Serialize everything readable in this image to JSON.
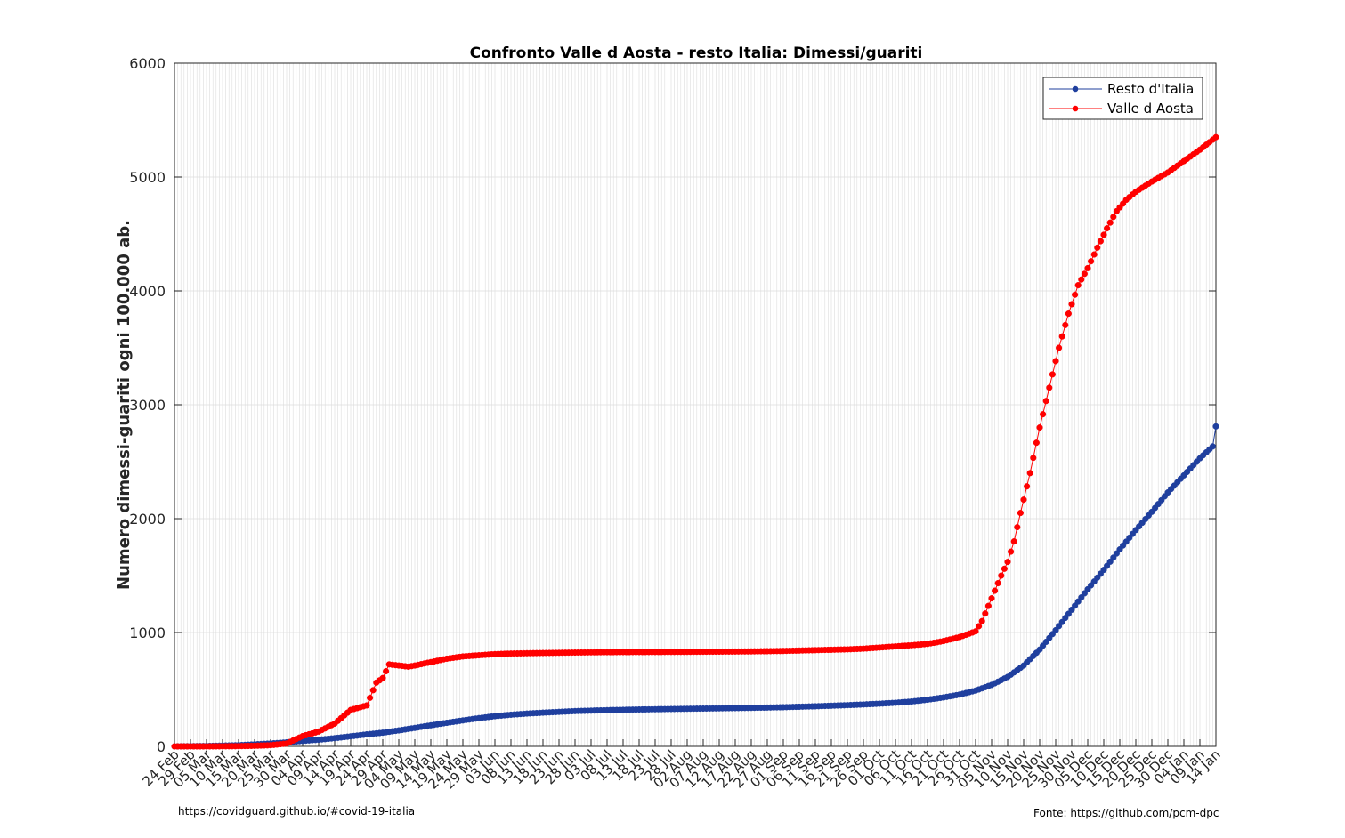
{
  "footer": {
    "left": "https://covidguard.github.io/#covid-19-italia",
    "right": "Fonte: https://github.com/pcm-dpc"
  },
  "chart_data": {
    "type": "line",
    "title": "Confronto Valle d Aosta - resto Italia: Dimessi/guariti",
    "ylabel": "Numero dimessi-guariti ogni 100.000 ab.",
    "xlabel": "",
    "ylim": [
      0,
      6000
    ],
    "yticks": [
      0,
      1000,
      2000,
      3000,
      4000,
      5000,
      6000
    ],
    "x_start": "2020-02-24",
    "x_end": "2021-01-14",
    "x_tick_labels": [
      "24 Feb",
      "29 Feb",
      "05 Mar",
      "10 Mar",
      "15 Mar",
      "20 Mar",
      "25 Mar",
      "30 Mar",
      "04 Apr",
      "09 Apr",
      "14 Apr",
      "19 Apr",
      "24 Apr",
      "29 Apr",
      "04 May",
      "09 May",
      "14 May",
      "19 May",
      "24 May",
      "29 May",
      "03 Jun",
      "08 Jun",
      "13 Jun",
      "18 Jun",
      "23 Jun",
      "28 Jun",
      "03 Jul",
      "08 Jul",
      "13 Jul",
      "18 Jul",
      "23 Jul",
      "28 Jul",
      "02 Aug",
      "07 Aug",
      "12 Aug",
      "17 Aug",
      "22 Aug",
      "27 Aug",
      "01 Sep",
      "06 Sep",
      "11 Sep",
      "16 Sep",
      "21 Sep",
      "26 Sep",
      "01 Oct",
      "06 Oct",
      "11 Oct",
      "16 Oct",
      "21 Oct",
      "26 Oct",
      "31 Oct",
      "05 Nov",
      "10 Nov",
      "15 Nov",
      "20 Nov",
      "25 Nov",
      "30 Nov",
      "05 Dec",
      "10 Dec",
      "15 Dec",
      "20 Dec",
      "25 Dec",
      "30 Dec",
      "04 Jan",
      "09 Jan",
      "14 Jan"
    ],
    "grid": true,
    "legend_position": "top-right",
    "series": [
      {
        "name": "Resto d'Italia",
        "color": "#1f3f9e",
        "points": [
          [
            "24 Feb",
            0
          ],
          [
            "05 Mar",
            3
          ],
          [
            "15 Mar",
            10
          ],
          [
            "25 Mar",
            25
          ],
          [
            "30 Mar",
            35
          ],
          [
            "04 Apr",
            48
          ],
          [
            "09 Apr",
            58
          ],
          [
            "14 Apr",
            72
          ],
          [
            "19 Apr",
            88
          ],
          [
            "24 Apr",
            105
          ],
          [
            "29 Apr",
            120
          ],
          [
            "04 May",
            140
          ],
          [
            "09 May",
            162
          ],
          [
            "14 May",
            185
          ],
          [
            "19 May",
            207
          ],
          [
            "24 May",
            228
          ],
          [
            "29 May",
            248
          ],
          [
            "03 Jun",
            265
          ],
          [
            "08 Jun",
            278
          ],
          [
            "13 Jun",
            288
          ],
          [
            "18 Jun",
            296
          ],
          [
            "23 Jun",
            303
          ],
          [
            "28 Jun",
            310
          ],
          [
            "03 Jul",
            314
          ],
          [
            "08 Jul",
            318
          ],
          [
            "13 Jul",
            321
          ],
          [
            "18 Jul",
            324
          ],
          [
            "23 Jul",
            326
          ],
          [
            "28 Jul",
            328
          ],
          [
            "02 Aug",
            330
          ],
          [
            "07 Aug",
            332
          ],
          [
            "12 Aug",
            334
          ],
          [
            "17 Aug",
            336
          ],
          [
            "22 Aug",
            338
          ],
          [
            "27 Aug",
            341
          ],
          [
            "01 Sep",
            344
          ],
          [
            "06 Sep",
            348
          ],
          [
            "11 Sep",
            352
          ],
          [
            "16 Sep",
            357
          ],
          [
            "21 Sep",
            362
          ],
          [
            "26 Sep",
            368
          ],
          [
            "01 Oct",
            375
          ],
          [
            "06 Oct",
            383
          ],
          [
            "11 Oct",
            394
          ],
          [
            "16 Oct",
            410
          ],
          [
            "21 Oct",
            430
          ],
          [
            "26 Oct",
            455
          ],
          [
            "31 Oct",
            490
          ],
          [
            "05 Nov",
            540
          ],
          [
            "10 Nov",
            610
          ],
          [
            "15 Nov",
            710
          ],
          [
            "20 Nov",
            850
          ],
          [
            "25 Nov",
            1020
          ],
          [
            "30 Nov",
            1200
          ],
          [
            "05 Dec",
            1380
          ],
          [
            "10 Dec",
            1550
          ],
          [
            "15 Dec",
            1730
          ],
          [
            "20 Dec",
            1900
          ],
          [
            "25 Dec",
            2060
          ],
          [
            "30 Dec",
            2230
          ],
          [
            "04 Jan",
            2380
          ],
          [
            "09 Jan",
            2530
          ],
          [
            "14 Jan",
            2660
          ],
          [
            "14 Jan",
            2810
          ]
        ]
      },
      {
        "name": "Valle d Aosta",
        "color": "#ff0000",
        "points": [
          [
            "24 Feb",
            0
          ],
          [
            "05 Mar",
            0
          ],
          [
            "15 Mar",
            2
          ],
          [
            "20 Mar",
            5
          ],
          [
            "25 Mar",
            10
          ],
          [
            "30 Mar",
            25
          ],
          [
            "04 Apr",
            90
          ],
          [
            "09 Apr",
            130
          ],
          [
            "14 Apr",
            200
          ],
          [
            "19 Apr",
            320
          ],
          [
            "24 Apr",
            360
          ],
          [
            "27 Apr",
            560
          ],
          [
            "29 Apr",
            600
          ],
          [
            "01 May",
            720
          ],
          [
            "04 May",
            710
          ],
          [
            "07 May",
            700
          ],
          [
            "09 May",
            710
          ],
          [
            "14 May",
            740
          ],
          [
            "19 May",
            770
          ],
          [
            "24 May",
            790
          ],
          [
            "29 May",
            800
          ],
          [
            "03 Jun",
            810
          ],
          [
            "08 Jun",
            815
          ],
          [
            "13 Jun",
            818
          ],
          [
            "18 Jun",
            820
          ],
          [
            "23 Jun",
            822
          ],
          [
            "28 Jun",
            824
          ],
          [
            "03 Jul",
            826
          ],
          [
            "13 Jul",
            828
          ],
          [
            "23 Jul",
            829
          ],
          [
            "02 Aug",
            830
          ],
          [
            "12 Aug",
            832
          ],
          [
            "22 Aug",
            834
          ],
          [
            "01 Sep",
            838
          ],
          [
            "11 Sep",
            845
          ],
          [
            "21 Sep",
            852
          ],
          [
            "26 Sep",
            858
          ],
          [
            "01 Oct",
            868
          ],
          [
            "06 Oct",
            878
          ],
          [
            "11 Oct",
            888
          ],
          [
            "16 Oct",
            900
          ],
          [
            "21 Oct",
            925
          ],
          [
            "26 Oct",
            960
          ],
          [
            "31 Oct",
            1010
          ],
          [
            "02 Nov",
            1100
          ],
          [
            "05 Nov",
            1300
          ],
          [
            "08 Nov",
            1500
          ],
          [
            "10 Nov",
            1620
          ],
          [
            "12 Nov",
            1800
          ],
          [
            "14 Nov",
            2050
          ],
          [
            "17 Nov",
            2400
          ],
          [
            "20 Nov",
            2800
          ],
          [
            "23 Nov",
            3150
          ],
          [
            "26 Nov",
            3500
          ],
          [
            "29 Nov",
            3800
          ],
          [
            "02 Dec",
            4050
          ],
          [
            "05 Dec",
            4200
          ],
          [
            "08 Dec",
            4380
          ],
          [
            "11 Dec",
            4550
          ],
          [
            "14 Dec",
            4700
          ],
          [
            "17 Dec",
            4800
          ],
          [
            "20 Dec",
            4870
          ],
          [
            "25 Dec",
            4960
          ],
          [
            "30 Dec",
            5040
          ],
          [
            "04 Jan",
            5140
          ],
          [
            "09 Jan",
            5240
          ],
          [
            "14 Jan",
            5350
          ]
        ]
      }
    ]
  }
}
